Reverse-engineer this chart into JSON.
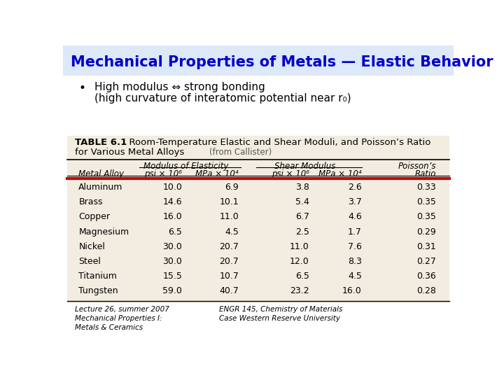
{
  "title": "Mechanical Properties of Metals — Elastic Behavior",
  "title_color": "#0000cc",
  "bullet_text_line1": "High modulus ⇔ strong bonding",
  "bullet_text_line2": "(high curvature of interatomic potential near r₀)",
  "table_title_bold": "TABLE 6.1",
  "table_subtitle": "  Room-Temperature Elastic and Shear Moduli, and Poisson’s Ratio",
  "table_subtitle2": "for Various Metal Alloys",
  "table_note": "(from Callister)",
  "rows": [
    [
      "Aluminum",
      "10.0",
      "6.9",
      "3.8",
      "2.6",
      "0.33"
    ],
    [
      "Brass",
      "14.6",
      "10.1",
      "5.4",
      "3.7",
      "0.35"
    ],
    [
      "Copper",
      "16.0",
      "11.0",
      "6.7",
      "4.6",
      "0.35"
    ],
    [
      "Magnesium",
      "6.5",
      "4.5",
      "2.5",
      "1.7",
      "0.29"
    ],
    [
      "Nickel",
      "30.0",
      "20.7",
      "11.0",
      "7.6",
      "0.31"
    ],
    [
      "Steel",
      "30.0",
      "20.7",
      "12.0",
      "8.3",
      "0.27"
    ],
    [
      "Titanium",
      "15.5",
      "10.7",
      "6.5",
      "4.5",
      "0.36"
    ],
    [
      "Tungsten",
      "59.0",
      "40.7",
      "23.2",
      "16.0",
      "0.28"
    ]
  ],
  "footer_left": "Lecture 26, summer 2007\nMechanical Properties I:\nMetals & Ceramics",
  "footer_right": "ENGR 145, Chemistry of Materials\nCase Western Reserve University",
  "bg_color": "#ffffff",
  "header_line_color": "#cc0000",
  "table_bg": "#f2ede0"
}
